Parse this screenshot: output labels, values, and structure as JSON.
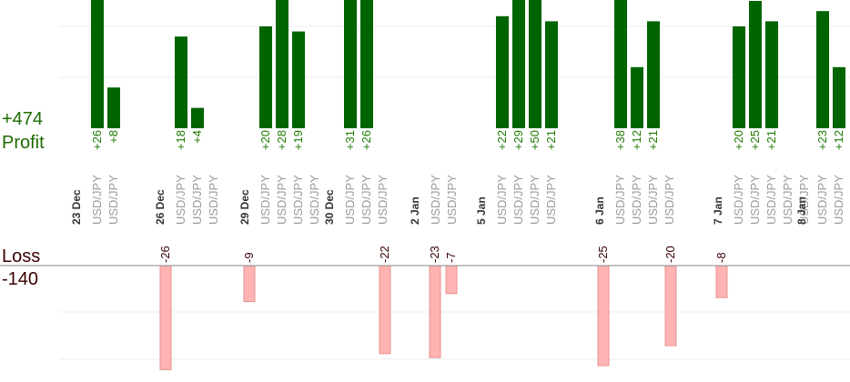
{
  "chart_data": {
    "type": "bar",
    "profit": {
      "label": "Profit",
      "total": "+474",
      "color": "#006400",
      "label_color": "#1f7a00"
    },
    "loss": {
      "label": "Loss",
      "total": "-140",
      "color": "#ffb3b3",
      "border_color": "#e89090",
      "label_color": "#3a0000"
    },
    "grid": true,
    "days": [
      {
        "date": "23 Dec",
        "trades": [
          {
            "pair": "USD/JPY",
            "value": 26
          },
          {
            "pair": "USD/JPY",
            "value": 8
          }
        ]
      },
      {
        "date": "26 Dec",
        "trades": [
          {
            "pair": "USD/JPY",
            "value": -26
          },
          {
            "pair": "USD/JPY",
            "value": 18
          },
          {
            "pair": "USD/JPY",
            "value": 4
          }
        ]
      },
      {
        "date": "29 Dec",
        "trades": [
          {
            "pair": "USD/JPY",
            "value": -9
          },
          {
            "pair": "USD/JPY",
            "value": 20
          },
          {
            "pair": "USD/JPY",
            "value": 28
          },
          {
            "pair": "USD/JPY",
            "value": 19
          }
        ]
      },
      {
        "date": "30 Dec",
        "trades": [
          {
            "pair": "USD/JPY",
            "value": 31
          },
          {
            "pair": "USD/JPY",
            "value": 26
          },
          {
            "pair": "USD/JPY",
            "value": -22
          }
        ]
      },
      {
        "date": "2 Jan",
        "trades": [
          {
            "pair": "USD/JPY",
            "value": -23
          },
          {
            "pair": "USD/JPY",
            "value": -7
          }
        ]
      },
      {
        "date": "5 Jan",
        "trades": [
          {
            "pair": "USD/JPY",
            "value": 22
          },
          {
            "pair": "USD/JPY",
            "value": 29
          },
          {
            "pair": "USD/JPY",
            "value": 50
          },
          {
            "pair": "USD/JPY",
            "value": 21
          }
        ]
      },
      {
        "date": "6 Jan",
        "trades": [
          {
            "pair": "USD/JPY",
            "value": -25
          },
          {
            "pair": "USD/JPY",
            "value": 38
          },
          {
            "pair": "USD/JPY",
            "value": 12
          },
          {
            "pair": "USD/JPY",
            "value": 21
          }
        ]
      },
      {
        "date": "7 Jan",
        "trades": [
          {
            "pair": "USD/JPY",
            "value": -20
          },
          {
            "pair": "USD/JPY",
            "value": -8
          },
          {
            "pair": "USD/JPY",
            "value": 20
          },
          {
            "pair": "USD/JPY",
            "value": 25
          },
          {
            "pair": "USD/JPY",
            "value": 21
          }
        ]
      },
      {
        "date": "8 Jan",
        "trades": [
          {
            "pair": "USD/JPY",
            "value": 23
          },
          {
            "pair": "USD/JPY",
            "value": 12
          }
        ]
      }
    ]
  }
}
